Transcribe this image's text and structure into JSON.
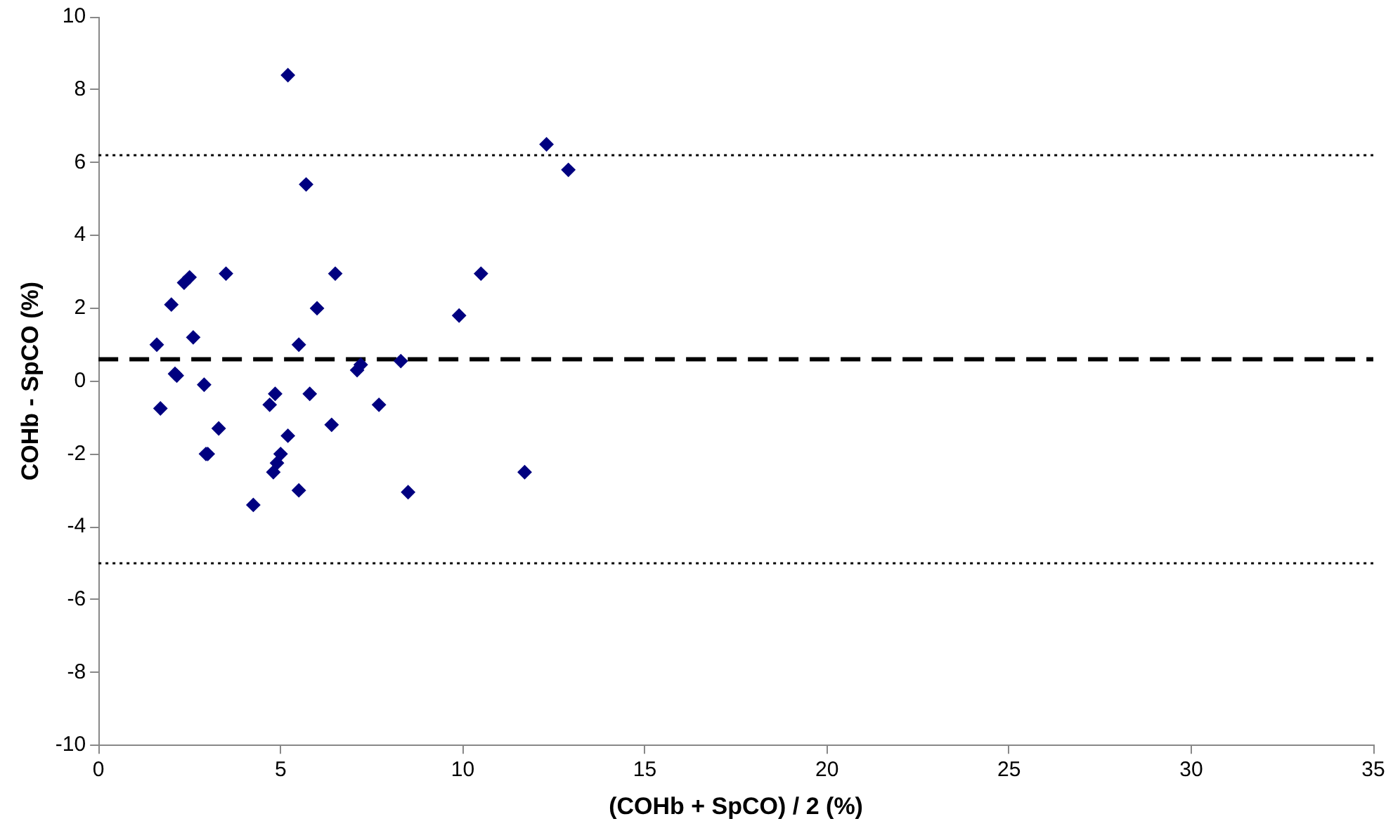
{
  "chart_data": {
    "type": "scatter",
    "xlabel": "(COHb + SpCO) / 2 (%)",
    "ylabel": "COHb - SpCO (%)",
    "xlim": [
      0,
      35
    ],
    "xticks": [
      0,
      5,
      10,
      15,
      20,
      25,
      30,
      35
    ],
    "ylim": [
      -10,
      10
    ],
    "yticks": [
      -10,
      -8,
      -6,
      -4,
      -2,
      0,
      2,
      4,
      6,
      8,
      10
    ],
    "grid": false,
    "legend": false,
    "marker": "diamond",
    "x": [
      1.6,
      1.7,
      2.0,
      2.1,
      2.15,
      2.35,
      2.5,
      2.6,
      2.9,
      2.95,
      3.0,
      3.3,
      3.5,
      4.25,
      4.7,
      4.8,
      4.85,
      4.9,
      5.0,
      5.2,
      5.2,
      5.5,
      5.5,
      5.7,
      5.8,
      6.0,
      6.4,
      6.5,
      7.1,
      7.2,
      7.7,
      8.3,
      8.5,
      9.9,
      10.5,
      11.7,
      12.3,
      12.9
    ],
    "series": [
      {
        "color": "#000080",
        "values": [
          1.0,
          -0.75,
          2.1,
          0.2,
          0.15,
          2.7,
          2.85,
          1.2,
          -0.1,
          -2.0,
          -2.0,
          -1.3,
          2.95,
          -3.4,
          -0.65,
          -2.5,
          -0.35,
          -2.25,
          -2.0,
          -1.5,
          8.4,
          1.0,
          -3.0,
          5.4,
          -0.35,
          2.0,
          -1.2,
          2.95,
          0.3,
          0.45,
          -0.65,
          0.55,
          -3.05,
          1.8,
          2.95,
          -2.5,
          6.5,
          5.8
        ]
      }
    ],
    "ref_lines": [
      {
        "axis": "y",
        "value": 0.6,
        "line_style": "dashed",
        "color": "#000000"
      },
      {
        "axis": "y",
        "value": 6.2,
        "line_style": "dotted",
        "color": "#000000"
      },
      {
        "axis": "y",
        "value": -5,
        "line_style": "dotted",
        "color": "#000000"
      }
    ]
  }
}
